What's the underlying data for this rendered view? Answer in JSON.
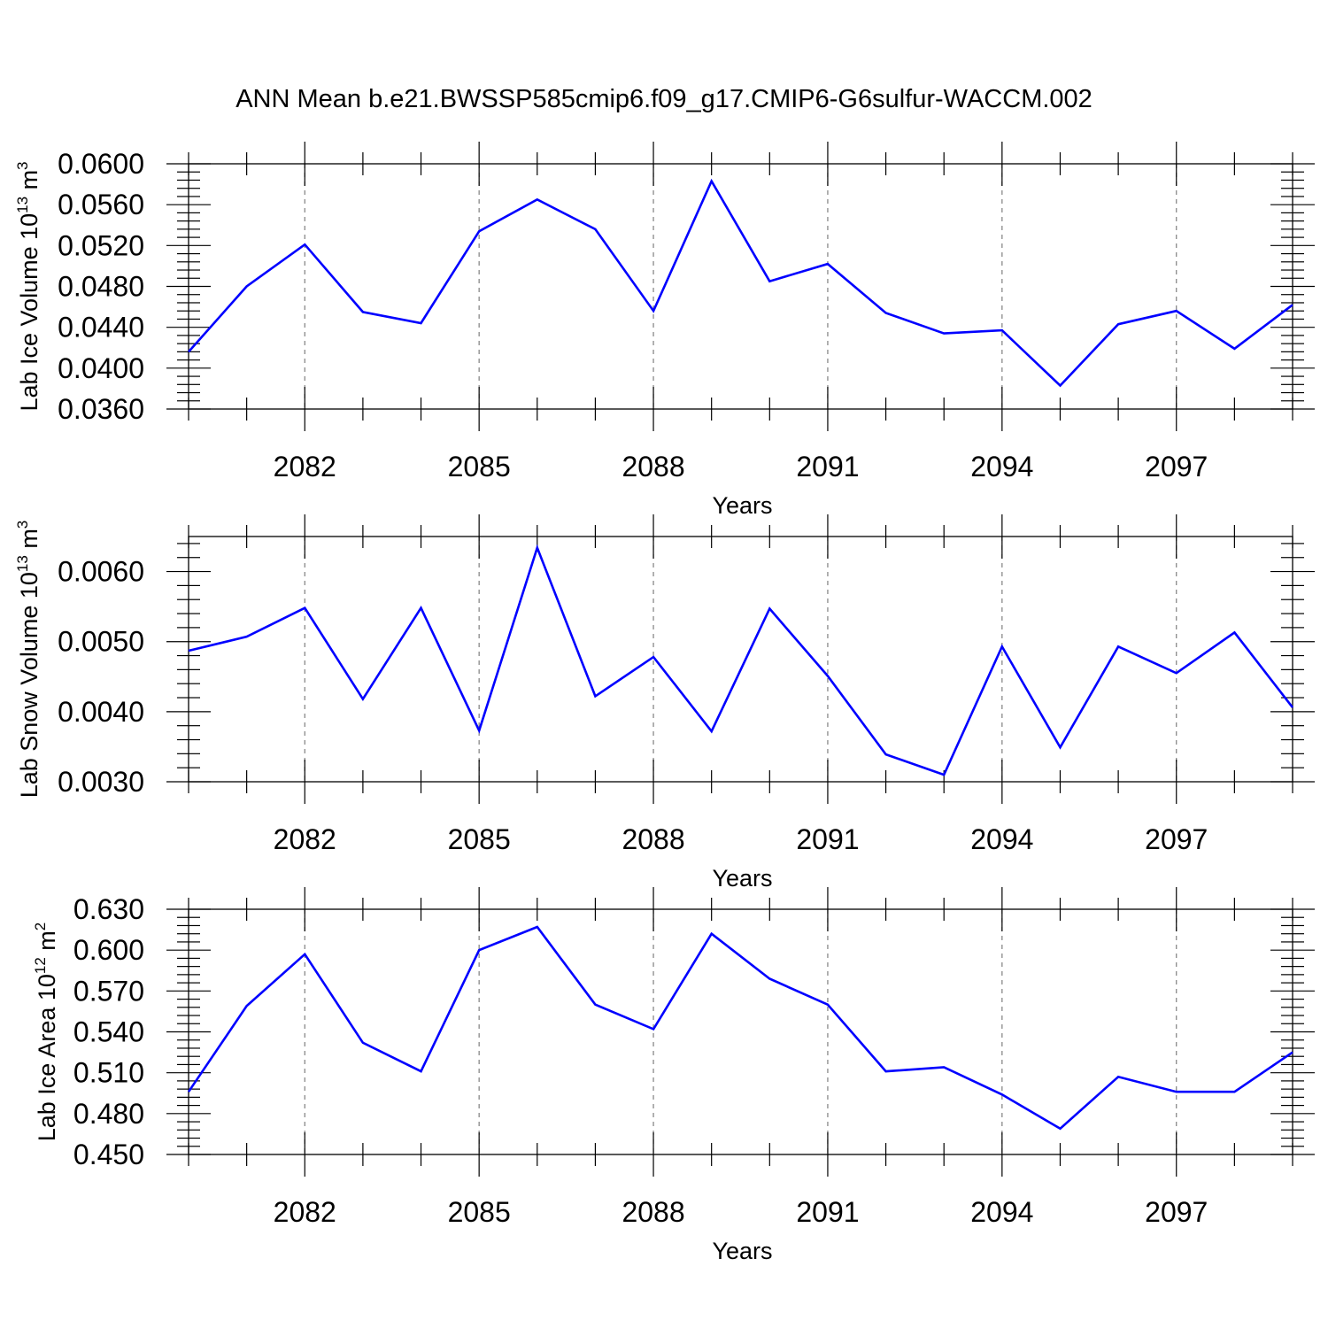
{
  "title": "ANN Mean b.e21.BWSSP585cmip6.f09_g17.CMIP6-G6sulfur-WACCM.002",
  "colors": {
    "line": "#0000ff",
    "axis": "#000000",
    "grid": "#7f7f7f"
  },
  "chart_data": [
    {
      "type": "line",
      "ylabel_main": "Lab Ice Volume 10",
      "ylabel_sup": "13",
      "ylabel_unit": " m",
      "ylabel_unit_sup": "3",
      "xlabel": "Years",
      "xlim": [
        2080,
        2099
      ],
      "ylim": [
        0.036,
        0.06
      ],
      "ytick_values": [
        0.036,
        0.04,
        0.044,
        0.048,
        0.052,
        0.056,
        0.06
      ],
      "ytick_labels": [
        "0.0360",
        "0.0400",
        "0.0440",
        "0.0480",
        "0.0520",
        "0.0560",
        "0.0600"
      ],
      "xtick_values": [
        2082,
        2085,
        2088,
        2091,
        2094,
        2097
      ],
      "xtick_labels": [
        "2082",
        "2085",
        "2088",
        "2091",
        "2094",
        "2097"
      ],
      "grid": "vertical dashed at major x ticks",
      "series": [
        {
          "x": [
            2080,
            2081,
            2082,
            2083,
            2084,
            2085,
            2086,
            2087,
            2088,
            2089,
            2090,
            2091,
            2092,
            2093,
            2094,
            2095,
            2096,
            2097,
            2098,
            2099
          ],
          "values": [
            0.0416,
            0.048,
            0.0521,
            0.0455,
            0.0444,
            0.0534,
            0.0565,
            0.0536,
            0.0456,
            0.0583,
            0.0485,
            0.0502,
            0.0454,
            0.0434,
            0.0437,
            0.0383,
            0.0443,
            0.0456,
            0.0419,
            0.0462
          ]
        }
      ]
    },
    {
      "type": "line",
      "ylabel_main": "Lab Snow Volume 10",
      "ylabel_sup": "13",
      "ylabel_unit": " m",
      "ylabel_unit_sup": "3",
      "xlabel": "Years",
      "xlim": [
        2080,
        2099
      ],
      "ylim": [
        0.003,
        0.0065
      ],
      "ytick_values": [
        0.003,
        0.004,
        0.005,
        0.006
      ],
      "ytick_labels": [
        "0.0030",
        "0.0040",
        "0.0050",
        "0.0060"
      ],
      "xtick_values": [
        2082,
        2085,
        2088,
        2091,
        2094,
        2097
      ],
      "xtick_labels": [
        "2082",
        "2085",
        "2088",
        "2091",
        "2094",
        "2097"
      ],
      "grid": "vertical dashed at major x ticks",
      "series": [
        {
          "x": [
            2080,
            2081,
            2082,
            2083,
            2084,
            2085,
            2086,
            2087,
            2088,
            2089,
            2090,
            2091,
            2092,
            2093,
            2094,
            2095,
            2096,
            2097,
            2098,
            2099
          ],
          "values": [
            0.00487,
            0.00507,
            0.00548,
            0.00418,
            0.00548,
            0.00373,
            0.00634,
            0.00422,
            0.00478,
            0.00372,
            0.00547,
            0.00451,
            0.00339,
            0.0031,
            0.00493,
            0.00349,
            0.00493,
            0.00455,
            0.00513,
            0.00406
          ]
        }
      ]
    },
    {
      "type": "line",
      "ylabel_main": "Lab Ice Area 10",
      "ylabel_sup": "12",
      "ylabel_unit": " m",
      "ylabel_unit_sup": "2",
      "xlabel": "Years",
      "xlim": [
        2080,
        2099
      ],
      "ylim": [
        0.45,
        0.63
      ],
      "ytick_values": [
        0.45,
        0.48,
        0.51,
        0.54,
        0.57,
        0.6,
        0.63
      ],
      "ytick_labels": [
        "0.450",
        "0.480",
        "0.510",
        "0.540",
        "0.570",
        "0.600",
        "0.630"
      ],
      "xtick_values": [
        2082,
        2085,
        2088,
        2091,
        2094,
        2097
      ],
      "xtick_labels": [
        "2082",
        "2085",
        "2088",
        "2091",
        "2094",
        "2097"
      ],
      "grid": "vertical dashed at major x ticks",
      "series": [
        {
          "x": [
            2080,
            2081,
            2082,
            2083,
            2084,
            2085,
            2086,
            2087,
            2088,
            2089,
            2090,
            2091,
            2092,
            2093,
            2094,
            2095,
            2096,
            2097,
            2098,
            2099
          ],
          "values": [
            0.496,
            0.559,
            0.597,
            0.532,
            0.511,
            0.6,
            0.617,
            0.56,
            0.542,
            0.612,
            0.579,
            0.56,
            0.511,
            0.514,
            0.494,
            0.469,
            0.507,
            0.496,
            0.496,
            0.525
          ]
        }
      ]
    }
  ]
}
